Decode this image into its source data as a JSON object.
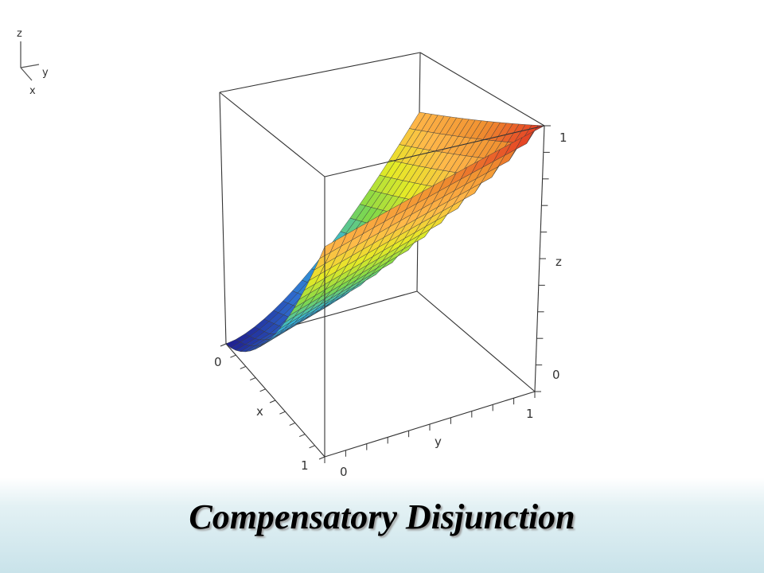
{
  "slide_title": "Compensatory Disjunction",
  "orientation_axes": {
    "z": "z",
    "y": "y",
    "x": "x"
  },
  "chart_data": {
    "type": "surface3d",
    "function_name": "compensatory disjunction",
    "x_label": "x",
    "y_label": "y",
    "z_label": "z",
    "xlim": [
      0,
      1
    ],
    "ylim": [
      0,
      1
    ],
    "zlim": [
      0,
      1
    ],
    "x_ticks": [
      "0",
      "1"
    ],
    "y_ticks": [
      "0",
      "1"
    ],
    "z_ticks": [
      "0",
      "1"
    ],
    "grid_n": 20,
    "surface_corners": [
      {
        "x": 0,
        "y": 0,
        "z": 0
      },
      {
        "x": 1,
        "y": 0,
        "z": 1
      },
      {
        "x": 0,
        "y": 1,
        "z": 1
      },
      {
        "x": 1,
        "y": 1,
        "z": 1
      }
    ],
    "colormap": [
      "#1f1f8f",
      "#2f6fd0",
      "#35b4d8",
      "#7fd84a",
      "#e6ea26",
      "#ffb84a",
      "#f09030",
      "#e02020"
    ]
  }
}
